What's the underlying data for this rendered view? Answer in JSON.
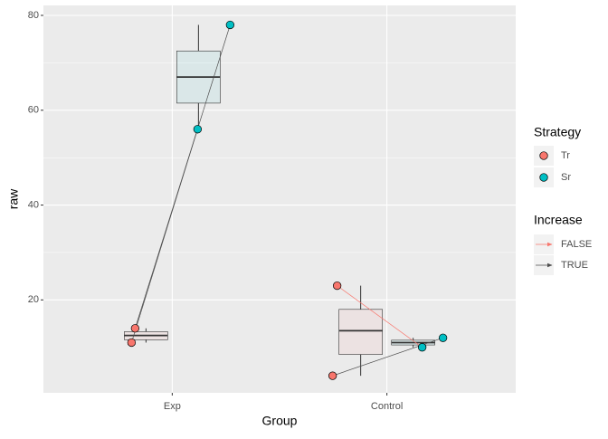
{
  "chart_data": {
    "type": "boxplot",
    "x_label": "Group",
    "y_label": "raw",
    "categories": [
      "Exp",
      "Control"
    ],
    "ylim": [
      0.4,
      82.1
    ],
    "yticks": [
      20,
      40,
      60,
      80
    ],
    "grid": true,
    "series": [
      {
        "name": "Tr",
        "color": "#f8766d",
        "boxes": [
          {
            "min": 11,
            "q1": 11.6,
            "median": 12.5,
            "q3": 13.3,
            "max": 14
          },
          {
            "min": 4,
            "q1": 8.5,
            "median": 13.5,
            "q3": 18,
            "max": 23
          }
        ],
        "points": [
          [
            11,
            14
          ],
          [
            23,
            4
          ]
        ]
      },
      {
        "name": "Sr",
        "color": "#00bfc4",
        "boxes": [
          {
            "min": 56,
            "q1": 61.5,
            "median": 67,
            "q3": 72.5,
            "max": 78
          },
          {
            "min": 10,
            "q1": 10.5,
            "median": 11,
            "q3": 11.5,
            "max": 12
          }
        ],
        "points": [
          [
            56,
            78
          ],
          [
            10,
            12
          ]
        ]
      }
    ],
    "legend_title": "Strategy",
    "increase": {
      "title": "Increase",
      "levels": [
        {
          "name": "FALSE",
          "color": "#f8766d"
        },
        {
          "name": "TRUE",
          "color": "#4d4d4d"
        }
      ]
    }
  }
}
